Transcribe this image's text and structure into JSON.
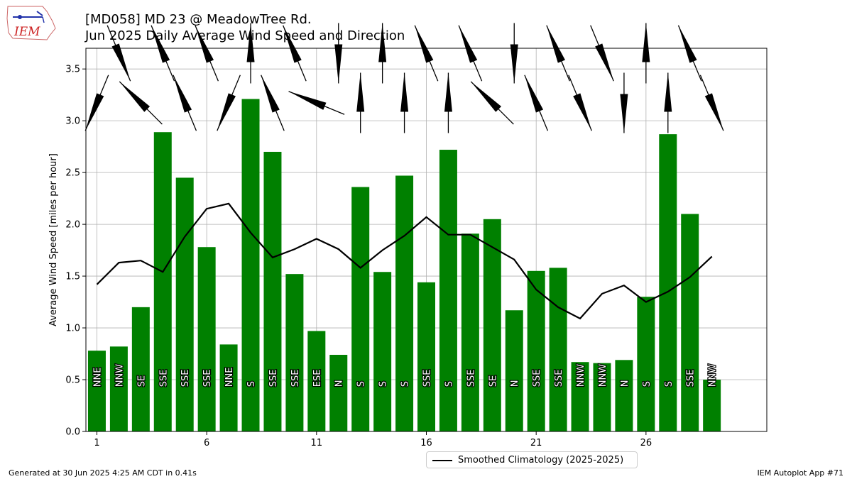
{
  "title_line1": "[MD058] MD 23 @ MeadowTree Rd.",
  "title_line2": "Jun 2025 Daily Average Wind Speed and Direction",
  "logo_text": "IEM",
  "footer_left": "Generated at 30 Jun 2025 4:25 AM CDT in 0.41s",
  "footer_right": "IEM Autoplot App #71",
  "legend": {
    "label": "Smoothed Climatology (2025-2025)"
  },
  "colors": {
    "bar": "#008000",
    "line": "#000000",
    "grid": "#b0b0b0",
    "logo": "#cc2222"
  },
  "chart_data": {
    "type": "bar",
    "ylabel": "Average Wind Speed [miles per hour]",
    "ylim": [
      0,
      3.7
    ],
    "xlim": [
      0.5,
      31.5
    ],
    "grid": true,
    "legend_position": "bottom-center",
    "xticks": [
      1,
      6,
      11,
      16,
      21,
      26
    ],
    "xtick_labels": [
      "1",
      "6",
      "11",
      "16",
      "21",
      "26"
    ],
    "yticks": [
      0.0,
      0.5,
      1.0,
      1.5,
      2.0,
      2.5,
      3.0,
      3.5
    ],
    "ytick_labels": [
      "0.0",
      "0.5",
      "1.0",
      "1.5",
      "2.0",
      "2.5",
      "3.0",
      "3.5"
    ],
    "days": [
      1,
      2,
      3,
      4,
      5,
      6,
      7,
      8,
      9,
      10,
      11,
      12,
      13,
      14,
      15,
      16,
      17,
      18,
      19,
      20,
      21,
      22,
      23,
      24,
      25,
      26,
      27,
      28,
      29
    ],
    "values": [
      0.78,
      0.82,
      1.2,
      2.89,
      2.45,
      1.78,
      0.84,
      3.21,
      2.7,
      1.52,
      0.97,
      0.74,
      2.36,
      1.54,
      2.47,
      1.44,
      2.72,
      1.91,
      2.05,
      1.17,
      1.55,
      1.58,
      0.67,
      0.66,
      0.69,
      1.3,
      2.87,
      2.1,
      0.5
    ],
    "directions": [
      "NNE",
      "NNW",
      "SE",
      "SSE",
      "SSE",
      "SSE",
      "NNE",
      "S",
      "SSE",
      "SSE",
      "ESE",
      "N",
      "S",
      "S",
      "S",
      "SSE",
      "S",
      "SSE",
      "SE",
      "N",
      "SSE",
      "SSE",
      "NNW",
      "NNW",
      "N",
      "S",
      "S",
      "SSE",
      "NNW"
    ],
    "series": [
      {
        "name": "Smoothed Climatology (2025-2025)",
        "type": "line",
        "x": [
          1,
          2,
          3,
          4,
          5,
          6,
          7,
          8,
          9,
          10,
          11,
          12,
          13,
          14,
          15,
          16,
          17,
          18,
          19,
          20,
          21,
          22,
          23,
          24,
          25,
          26,
          27,
          28,
          29
        ],
        "values": [
          1.42,
          1.63,
          1.65,
          1.54,
          1.88,
          2.15,
          2.2,
          1.92,
          1.68,
          1.76,
          1.86,
          1.76,
          1.58,
          1.75,
          1.89,
          2.07,
          1.9,
          1.9,
          1.78,
          1.66,
          1.37,
          1.2,
          1.09,
          1.33,
          1.41,
          1.25,
          1.35,
          1.49,
          1.69
        ]
      }
    ]
  }
}
